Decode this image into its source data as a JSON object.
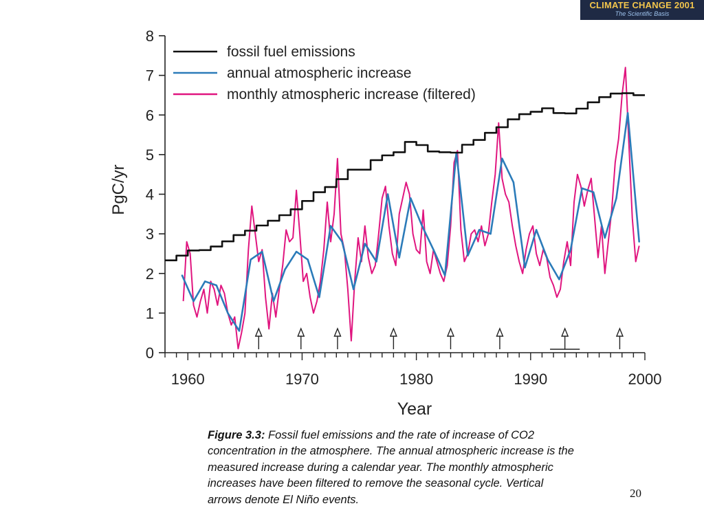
{
  "logo": {
    "title": "CLIMATE CHANGE 2001",
    "subtitle": "The Scientific Basis",
    "colors": {
      "background": "#1f2a44",
      "title": "#f3c64c",
      "subtitle": "#9fc4ee"
    }
  },
  "caption": {
    "label": "Figure 3.3:",
    "text": " Fossil fuel emissions and the rate of increase of CO2 concentration in the atmosphere. The annual atmospheric increase is the measured increase during a calendar year. The monthly atmospheric increases have been filtered to remove the seasonal cycle. Vertical arrows denote El Niño events."
  },
  "page_number": "20",
  "chart_data": {
    "type": "line",
    "xlabel": "Year",
    "ylabel": "PgC/yr",
    "xlim": [
      1958,
      2000
    ],
    "ylim": [
      0,
      8
    ],
    "x_major_ticks": [
      1960,
      1970,
      1980,
      1990,
      2000
    ],
    "y_major_ticks": [
      0,
      1,
      2,
      3,
      4,
      5,
      6,
      7,
      8
    ],
    "grid": false,
    "legend_position": "top-left",
    "colors": {
      "fossil": "#111111",
      "annual": "#2b7bb9",
      "monthly": "#e0157f"
    },
    "series": [
      {
        "name": "fossil fuel emissions",
        "style": "step",
        "x": [
          1958,
          1959,
          1960,
          1961,
          1962,
          1963,
          1964,
          1965,
          1966,
          1967,
          1968,
          1969,
          1970,
          1971,
          1972,
          1973,
          1974,
          1975,
          1976,
          1977,
          1978,
          1979,
          1980,
          1981,
          1982,
          1983,
          1984,
          1985,
          1986,
          1987,
          1988,
          1989,
          1990,
          1991,
          1992,
          1993,
          1994,
          1995,
          1996,
          1997,
          1998,
          1999
        ],
        "y": [
          2.33,
          2.45,
          2.58,
          2.59,
          2.68,
          2.81,
          2.97,
          3.08,
          3.21,
          3.33,
          3.47,
          3.62,
          3.83,
          4.05,
          4.18,
          4.38,
          4.62,
          4.62,
          4.86,
          4.98,
          5.06,
          5.32,
          5.24,
          5.08,
          5.06,
          5.05,
          5.25,
          5.37,
          5.55,
          5.69,
          5.89,
          6.02,
          6.08,
          6.17,
          6.05,
          6.04,
          6.16,
          6.32,
          6.45,
          6.54,
          6.55,
          6.5
        ]
      },
      {
        "name": "annual atmospheric increase",
        "style": "line",
        "x": [
          1959.5,
          1960.5,
          1961.5,
          1962.5,
          1963.5,
          1964.5,
          1965.5,
          1966.5,
          1967.5,
          1968.5,
          1969.5,
          1970.5,
          1971.5,
          1972.5,
          1973.5,
          1974.5,
          1975.5,
          1976.5,
          1977.5,
          1978.5,
          1979.5,
          1980.5,
          1981.5,
          1982.5,
          1983.5,
          1984.5,
          1985.5,
          1986.5,
          1987.5,
          1988.5,
          1989.5,
          1990.5,
          1991.5,
          1992.5,
          1993.5,
          1994.5,
          1995.5,
          1996.5,
          1997.5,
          1998.5,
          1999.5
        ],
        "y": [
          1.95,
          1.3,
          1.8,
          1.7,
          1.0,
          0.55,
          2.35,
          2.55,
          1.3,
          2.1,
          2.55,
          2.35,
          1.4,
          3.2,
          2.8,
          1.6,
          2.75,
          2.3,
          4.0,
          2.4,
          3.9,
          3.2,
          2.6,
          1.95,
          5.05,
          2.45,
          3.1,
          3.0,
          4.9,
          4.3,
          2.15,
          3.1,
          2.35,
          1.85,
          2.6,
          4.15,
          4.05,
          2.9,
          3.9,
          6.05,
          2.8
        ]
      },
      {
        "name": "monthly atmospheric increase (filtered)",
        "style": "noisy-line",
        "x": [
          1959.6,
          1959.9,
          1960.2,
          1960.5,
          1960.8,
          1961.1,
          1961.4,
          1961.7,
          1962.0,
          1962.3,
          1962.6,
          1962.9,
          1963.2,
          1963.5,
          1963.8,
          1964.1,
          1964.4,
          1964.7,
          1965.0,
          1965.3,
          1965.6,
          1965.9,
          1966.2,
          1966.5,
          1966.8,
          1967.1,
          1967.4,
          1967.7,
          1968.0,
          1968.3,
          1968.6,
          1968.9,
          1969.2,
          1969.5,
          1969.8,
          1970.1,
          1970.4,
          1970.7,
          1971.0,
          1971.3,
          1971.6,
          1971.9,
          1972.2,
          1972.5,
          1972.8,
          1973.1,
          1973.4,
          1973.7,
          1974.0,
          1974.3,
          1974.6,
          1974.9,
          1975.2,
          1975.5,
          1975.8,
          1976.1,
          1976.4,
          1976.7,
          1977.0,
          1977.3,
          1977.6,
          1977.9,
          1978.2,
          1978.5,
          1978.8,
          1979.1,
          1979.4,
          1979.7,
          1980.0,
          1980.3,
          1980.6,
          1980.9,
          1981.2,
          1981.5,
          1981.8,
          1982.1,
          1982.4,
          1982.7,
          1983.0,
          1983.3,
          1983.6,
          1983.9,
          1984.2,
          1984.5,
          1984.8,
          1985.1,
          1985.4,
          1985.7,
          1986.0,
          1986.3,
          1986.6,
          1986.9,
          1987.2,
          1987.5,
          1987.8,
          1988.1,
          1988.4,
          1988.7,
          1989.0,
          1989.3,
          1989.6,
          1989.9,
          1990.2,
          1990.5,
          1990.8,
          1991.1,
          1991.4,
          1991.7,
          1992.0,
          1992.3,
          1992.6,
          1992.9,
          1993.2,
          1993.5,
          1993.8,
          1994.1,
          1994.4,
          1994.7,
          1995.0,
          1995.3,
          1995.6,
          1995.9,
          1996.2,
          1996.5,
          1996.8,
          1997.1,
          1997.4,
          1997.7,
          1998.0,
          1998.3,
          1998.6,
          1998.9,
          1999.2,
          1999.5
        ],
        "y": [
          1.3,
          2.8,
          2.5,
          1.2,
          0.9,
          1.3,
          1.6,
          1.0,
          1.8,
          1.6,
          1.2,
          1.7,
          1.5,
          1.0,
          0.7,
          0.9,
          0.1,
          0.5,
          1.0,
          2.6,
          3.7,
          3.0,
          2.3,
          2.6,
          1.4,
          0.6,
          1.5,
          0.9,
          1.6,
          2.2,
          3.1,
          2.8,
          2.9,
          4.1,
          3.0,
          1.8,
          2.0,
          1.4,
          1.0,
          1.3,
          1.8,
          2.6,
          3.8,
          2.8,
          3.5,
          4.9,
          3.0,
          2.6,
          1.6,
          0.3,
          1.8,
          2.9,
          2.3,
          3.2,
          2.4,
          2.0,
          2.2,
          3.0,
          3.9,
          4.2,
          3.2,
          2.5,
          2.2,
          3.5,
          3.9,
          4.3,
          4.0,
          3.0,
          2.6,
          2.5,
          3.6,
          2.3,
          2.0,
          2.6,
          2.3,
          2.0,
          1.8,
          2.2,
          3.2,
          4.8,
          5.1,
          3.1,
          2.3,
          2.5,
          3.0,
          3.1,
          2.8,
          3.2,
          2.7,
          3.0,
          3.8,
          4.5,
          5.8,
          4.4,
          4.0,
          3.8,
          3.2,
          2.7,
          2.3,
          2.0,
          2.6,
          3.0,
          3.2,
          2.5,
          2.2,
          2.6,
          2.4,
          1.9,
          1.7,
          1.4,
          1.6,
          2.3,
          2.8,
          2.2,
          3.8,
          4.5,
          4.2,
          3.7,
          4.1,
          4.4,
          3.4,
          2.4,
          3.2,
          2.0,
          2.8,
          3.6,
          4.8,
          5.4,
          6.5,
          7.2,
          5.3,
          3.4,
          2.3,
          2.7
        ]
      }
    ],
    "el_nino_arrows_x": [
      1966.2,
      1969.9,
      1973.1,
      1978.0,
      1983.0,
      1987.3,
      1993.0,
      1997.8
    ]
  }
}
